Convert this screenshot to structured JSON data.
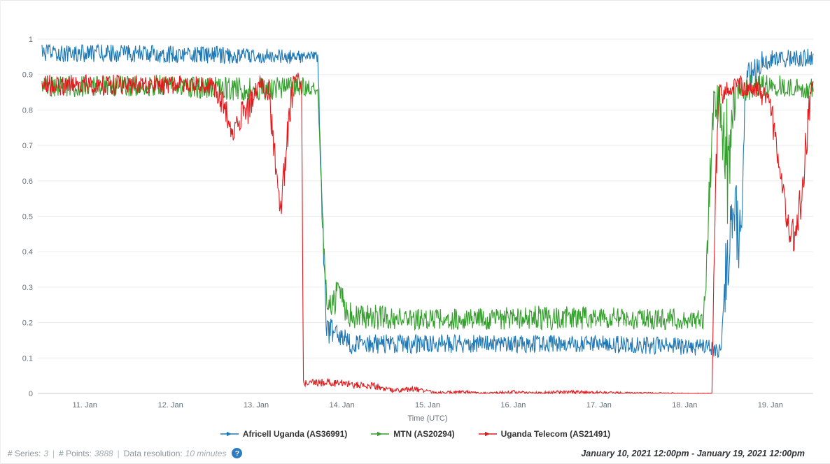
{
  "chart_data": {
    "type": "line",
    "title": "",
    "xlabel": "Time (UTC)",
    "ylabel": "",
    "ylim": [
      0,
      1
    ],
    "y_ticks": [
      0,
      0.1,
      0.2,
      0.3,
      0.4,
      0.5,
      0.6,
      0.7,
      0.8,
      0.9,
      1
    ],
    "x_span_days": 9,
    "x_range": [
      "January 10, 2021 12:00pm",
      "January 19, 2021 12:00pm"
    ],
    "x_ticks": [
      {
        "day": 0.5,
        "label": "11. Jan"
      },
      {
        "day": 1.5,
        "label": "12. Jan"
      },
      {
        "day": 2.5,
        "label": "13. Jan"
      },
      {
        "day": 3.5,
        "label": "14. Jan"
      },
      {
        "day": 4.5,
        "label": "15. Jan"
      },
      {
        "day": 5.5,
        "label": "16. Jan"
      },
      {
        "day": 6.5,
        "label": "17. Jan"
      },
      {
        "day": 7.5,
        "label": "18. Jan"
      },
      {
        "day": 8.5,
        "label": "19. Jan"
      }
    ],
    "grid": "horizontal",
    "legend_position": "bottom",
    "points_per_series": 1296,
    "series": [
      {
        "name": "Africell Uganda (AS36991)",
        "color": "#1f78b4",
        "keypoints": [
          [
            0,
            0.96,
            0.025
          ],
          [
            1.0,
            0.96,
            0.025
          ],
          [
            2.0,
            0.955,
            0.025
          ],
          [
            2.9,
            0.95,
            0.02
          ],
          [
            3.22,
            0.95,
            0.015
          ],
          [
            3.26,
            0.6,
            0.05
          ],
          [
            3.32,
            0.18,
            0.04
          ],
          [
            3.6,
            0.14,
            0.03
          ],
          [
            5.0,
            0.14,
            0.025
          ],
          [
            6.5,
            0.14,
            0.025
          ],
          [
            7.8,
            0.13,
            0.025
          ],
          [
            7.92,
            0.12,
            0.02
          ],
          [
            7.98,
            0.35,
            0.1
          ],
          [
            8.05,
            0.5,
            0.12
          ],
          [
            8.15,
            0.45,
            0.12
          ],
          [
            8.22,
            0.88,
            0.05
          ],
          [
            8.4,
            0.94,
            0.03
          ],
          [
            9,
            0.95,
            0.025
          ]
        ]
      },
      {
        "name": "MTN (AS20294)",
        "color": "#33a02c",
        "keypoints": [
          [
            0,
            0.865,
            0.03
          ],
          [
            1.5,
            0.87,
            0.03
          ],
          [
            2.5,
            0.855,
            0.035
          ],
          [
            3.0,
            0.87,
            0.03
          ],
          [
            3.22,
            0.86,
            0.02
          ],
          [
            3.27,
            0.5,
            0.06
          ],
          [
            3.33,
            0.23,
            0.03
          ],
          [
            3.45,
            0.28,
            0.05
          ],
          [
            3.6,
            0.22,
            0.04
          ],
          [
            4.2,
            0.21,
            0.03
          ],
          [
            5.0,
            0.21,
            0.03
          ],
          [
            6.0,
            0.215,
            0.035
          ],
          [
            7.0,
            0.21,
            0.03
          ],
          [
            7.72,
            0.21,
            0.03
          ],
          [
            7.78,
            0.5,
            0.1
          ],
          [
            7.84,
            0.83,
            0.04
          ],
          [
            7.92,
            0.8,
            0.08
          ],
          [
            8.0,
            0.65,
            0.18
          ],
          [
            8.1,
            0.86,
            0.04
          ],
          [
            8.5,
            0.87,
            0.03
          ],
          [
            9,
            0.86,
            0.03
          ]
        ]
      },
      {
        "name": "Uganda Telecom (AS21491)",
        "color": "#e31a1c",
        "keypoints": [
          [
            0,
            0.87,
            0.03
          ],
          [
            1.0,
            0.87,
            0.03
          ],
          [
            2.0,
            0.87,
            0.025
          ],
          [
            2.15,
            0.8,
            0.04
          ],
          [
            2.22,
            0.73,
            0.02
          ],
          [
            2.3,
            0.78,
            0.04
          ],
          [
            2.4,
            0.8,
            0.05
          ],
          [
            2.55,
            0.88,
            0.02
          ],
          [
            2.65,
            0.85,
            0.04
          ],
          [
            2.72,
            0.65,
            0.06
          ],
          [
            2.78,
            0.5,
            0.03
          ],
          [
            2.83,
            0.62,
            0.06
          ],
          [
            2.9,
            0.82,
            0.05
          ],
          [
            2.96,
            0.9,
            0.03
          ],
          [
            3.03,
            0.87,
            0.02
          ],
          [
            3.05,
            0.03,
            0.01
          ],
          [
            3.3,
            0.03,
            0.012
          ],
          [
            3.6,
            0.025,
            0.012
          ],
          [
            3.9,
            0.02,
            0.01
          ],
          [
            4.1,
            0.008,
            0.006
          ],
          [
            4.35,
            0.012,
            0.008
          ],
          [
            4.6,
            0.002,
            0.003
          ],
          [
            4.9,
            0.004,
            0.005
          ],
          [
            5.2,
            0.001,
            0.002
          ],
          [
            5.5,
            0.004,
            0.005
          ],
          [
            5.8,
            0.002,
            0.003
          ],
          [
            6.1,
            0.004,
            0.005
          ],
          [
            6.5,
            0.003,
            0.004
          ],
          [
            6.9,
            0.001,
            0.002
          ],
          [
            7.3,
            0.001,
            0.002
          ],
          [
            7.6,
            0.0,
            0.001
          ],
          [
            7.82,
            0.0,
            0.001
          ],
          [
            7.85,
            0.5,
            0.08
          ],
          [
            7.9,
            0.85,
            0.04
          ],
          [
            8.1,
            0.87,
            0.03
          ],
          [
            8.35,
            0.86,
            0.03
          ],
          [
            8.5,
            0.82,
            0.04
          ],
          [
            8.62,
            0.6,
            0.06
          ],
          [
            8.72,
            0.46,
            0.04
          ],
          [
            8.8,
            0.44,
            0.05
          ],
          [
            8.88,
            0.6,
            0.1
          ],
          [
            8.97,
            0.85,
            0.04
          ],
          [
            9,
            0.87,
            0.02
          ]
        ]
      }
    ]
  },
  "footer": {
    "series_label": "# Series:",
    "series_value": "3",
    "points_label": "# Points:",
    "points_value": "3888",
    "resolution_label": "Data resolution:",
    "resolution_value": "10 minutes",
    "sep": "|",
    "help_glyph": "?",
    "date_range": "January 10, 2021 12:00pm - January 19, 2021 12:00pm"
  }
}
